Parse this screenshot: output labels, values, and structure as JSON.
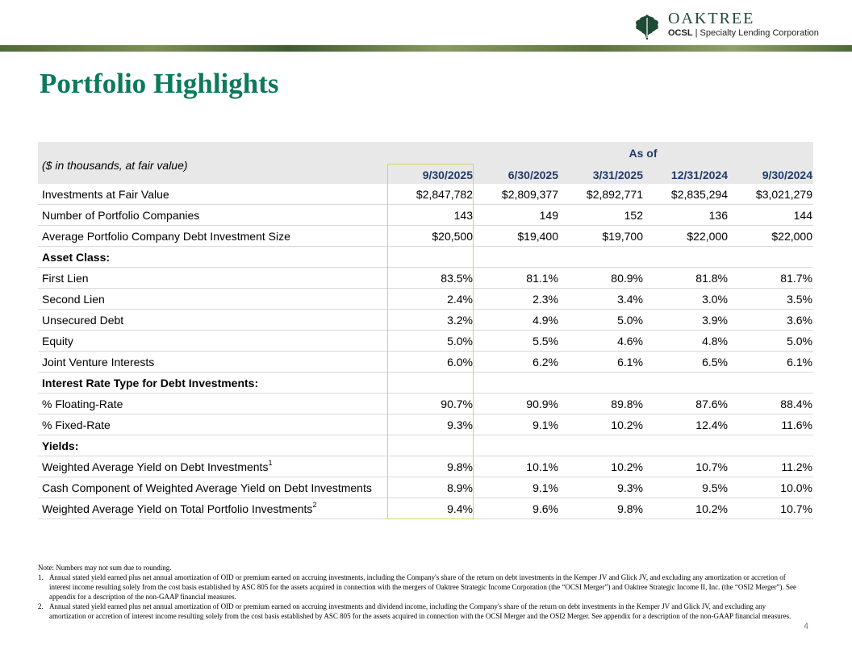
{
  "logo": {
    "wordmark": "OAKTREE",
    "ticker": "OCSL",
    "divider": "|",
    "company": "Specialty Lending Corporation"
  },
  "title": "Portfolio Highlights",
  "table": {
    "units_label": "($ in thousands, at fair value)",
    "group_header": "As of",
    "columns": [
      "9/30/2025",
      "6/30/2025",
      "3/31/2025",
      "12/31/2024",
      "9/30/2024"
    ],
    "rows": [
      {
        "label": "Investments at Fair Value",
        "values": [
          "$2,847,782",
          "$2,809,377",
          "$2,892,771",
          "$2,835,294",
          "$3,021,279"
        ]
      },
      {
        "label": "Number of Portfolio Companies",
        "values": [
          "143",
          "149",
          "152",
          "136",
          "144"
        ]
      },
      {
        "label": "Average Portfolio Company Debt Investment Size",
        "values": [
          "$20,500",
          "$19,400",
          "$19,700",
          "$22,000",
          "$22,000"
        ]
      },
      {
        "label": "Asset Class:",
        "section": true
      },
      {
        "label": "First Lien",
        "values": [
          "83.5%",
          "81.1%",
          "80.9%",
          "81.8%",
          "81.7%"
        ]
      },
      {
        "label": "Second Lien",
        "values": [
          "2.4%",
          "2.3%",
          "3.4%",
          "3.0%",
          "3.5%"
        ]
      },
      {
        "label": "Unsecured Debt",
        "values": [
          "3.2%",
          "4.9%",
          "5.0%",
          "3.9%",
          "3.6%"
        ]
      },
      {
        "label": "Equity",
        "values": [
          "5.0%",
          "5.5%",
          "4.6%",
          "4.8%",
          "5.0%"
        ]
      },
      {
        "label": "Joint Venture Interests",
        "values": [
          "6.0%",
          "6.2%",
          "6.1%",
          "6.5%",
          "6.1%"
        ]
      },
      {
        "label": "Interest Rate Type for Debt Investments:",
        "section": true
      },
      {
        "label": "% Floating-Rate",
        "values": [
          "90.7%",
          "90.9%",
          "89.8%",
          "87.6%",
          "88.4%"
        ]
      },
      {
        "label": "% Fixed-Rate",
        "values": [
          "9.3%",
          "9.1%",
          "10.2%",
          "12.4%",
          "11.6%"
        ]
      },
      {
        "label": "Yields:",
        "section": true
      },
      {
        "label": "Weighted Average Yield on Debt Investments",
        "sup": "1",
        "values": [
          "9.8%",
          "10.1%",
          "10.2%",
          "10.7%",
          "11.2%"
        ]
      },
      {
        "label": "Cash Component of Weighted Average Yield on Debt Investments",
        "values": [
          "8.9%",
          "9.1%",
          "9.3%",
          "9.5%",
          "10.0%"
        ]
      },
      {
        "label": "Weighted Average Yield on Total Portfolio Investments",
        "sup": "2",
        "values": [
          "9.4%",
          "9.6%",
          "9.8%",
          "10.2%",
          "10.7%"
        ]
      }
    ]
  },
  "notes": {
    "intro": "Note: Numbers may not sum due to rounding.",
    "items": [
      {
        "num": "1.",
        "text": "Annual stated yield earned plus net annual amortization of OID or premium earned on accruing investments, including the Company's share of the return on debt investments in the Kemper JV and Glick JV, and excluding any amortization or accretion of interest income resulting solely from the cost basis established by ASC 805 for the assets acquired in connection with the mergers of Oaktree Strategic Income Corporation (the “OCSI Merger”) and Oaktree Strategic Income II, Inc. (the “OSI2 Merger”). See appendix for a description of the non-GAAP financial measures."
      },
      {
        "num": "2.",
        "text": "Annual stated yield earned plus net annual amortization of OID or premium earned on accruing investments and dividend income, including the Company's share of the return on debt investments in the Kemper JV and Glick JV, and excluding any amortization or accretion of interest income resulting solely from the cost basis established by ASC 805 for the assets acquired in connection with the OCSI Merger and the OSI2 Merger. See appendix for a description of the non-GAAP financial measures."
      }
    ]
  },
  "page_number": "4",
  "colors": {
    "title": "#0b7a5a",
    "header_text": "#1f3a6b",
    "header_bg": "#e8e8e8",
    "highlight_border": "#d9cf6a",
    "logo_green": "#1f4a33"
  }
}
